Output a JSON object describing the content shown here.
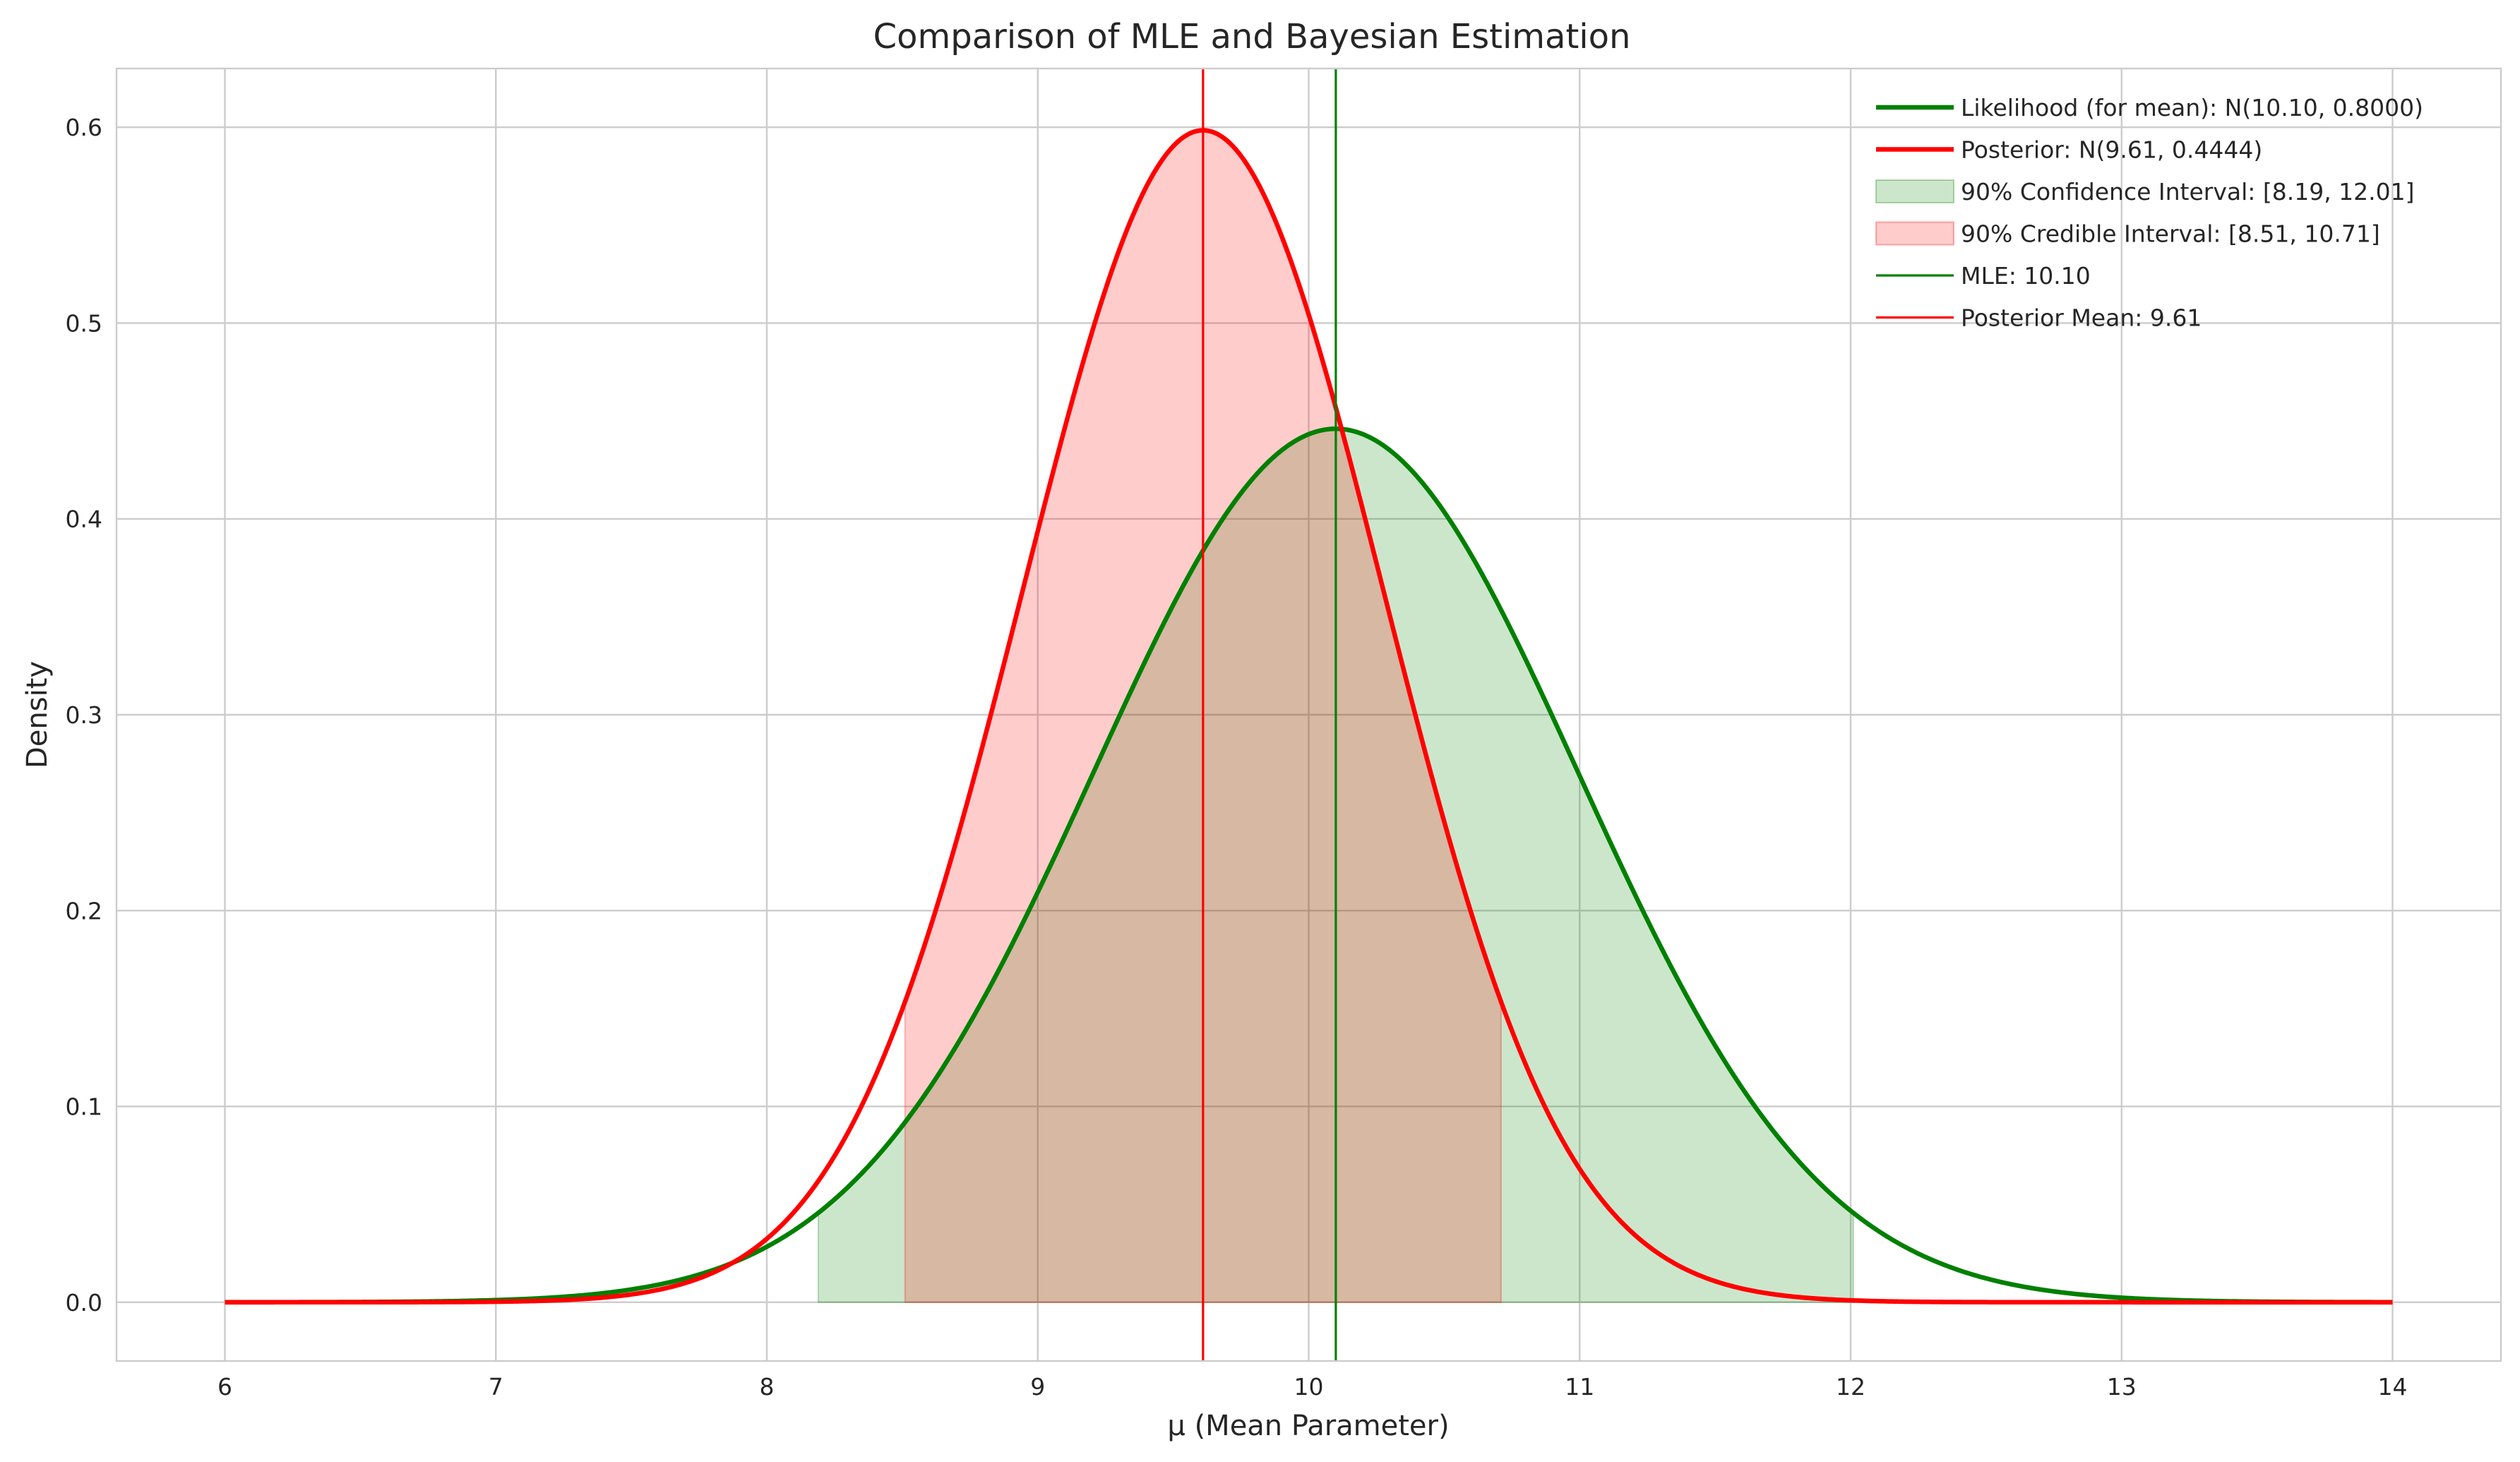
{
  "chart_data": {
    "type": "line",
    "title": "Comparison of MLE and Bayesian Estimation",
    "xlabel": "μ (Mean Parameter)",
    "ylabel": "Density",
    "xlim": [
      5.6,
      14.4
    ],
    "ylim": [
      -0.03,
      0.63
    ],
    "xticks": [
      6,
      7,
      8,
      9,
      10,
      11,
      12,
      13,
      14
    ],
    "yticks": [
      0.0,
      0.1,
      0.2,
      0.3,
      0.4,
      0.5,
      0.6
    ],
    "x_range": [
      6,
      14
    ],
    "grid": true,
    "legend_position": "top-right",
    "series": [
      {
        "name": "Likelihood (for mean): N(10.10, 0.8000)",
        "kind": "normal_pdf",
        "mean": 10.1,
        "variance": 0.8,
        "color": "#008000"
      },
      {
        "name": "Posterior: N(9.61, 0.4444)",
        "kind": "normal_pdf",
        "mean": 9.61,
        "variance": 0.4444,
        "color": "#ff0000"
      }
    ],
    "intervals": [
      {
        "name": "90% Confidence Interval: [8.19, 12.01]",
        "series_index": 0,
        "low": 8.19,
        "high": 12.01,
        "color": "#008000",
        "opacity": 0.2
      },
      {
        "name": "90% Credible Interval: [8.51, 10.71]",
        "series_index": 1,
        "low": 8.51,
        "high": 10.71,
        "color": "#ff0000",
        "opacity": 0.2
      }
    ],
    "vlines": [
      {
        "name": "MLE: 10.10",
        "x": 10.1,
        "color": "#008000"
      },
      {
        "name": "Posterior Mean: 9.61",
        "x": 9.61,
        "color": "#ff0000"
      }
    ]
  }
}
